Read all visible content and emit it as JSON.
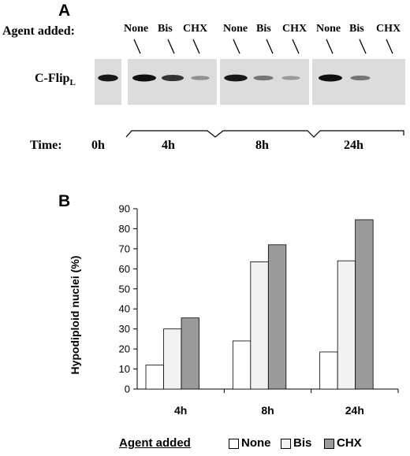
{
  "panel_a": {
    "letter": "A",
    "agent_added_label": "Agent added:",
    "lane_groups": [
      {
        "lanes": [
          "None",
          "Bis",
          "CHX"
        ]
      },
      {
        "lanes": [
          "None",
          "Bis",
          "CHX"
        ]
      },
      {
        "lanes": [
          "None",
          "Bis",
          "CHX"
        ]
      }
    ],
    "protein_label_main": "C-Flip",
    "protein_label_sub": "L",
    "time_label": "Time:",
    "times": [
      "0h",
      "4h",
      "8h",
      "24h"
    ],
    "band_intensities": [
      [
        0.95
      ],
      [
        1.0,
        0.8,
        0.3
      ],
      [
        0.95,
        0.45,
        0.25
      ],
      [
        1.0,
        0.45,
        0.0
      ]
    ]
  },
  "panel_b": {
    "letter": "B",
    "legend_title": "Agent added",
    "colors": {
      "None": "#ffffff",
      "Bis": "#f2f2f2",
      "CHX": "#9a9a9a"
    },
    "chart_data": {
      "type": "bar",
      "categories": [
        "4h",
        "8h",
        "24h"
      ],
      "series": [
        {
          "name": "None",
          "values": [
            12,
            24,
            18.5
          ]
        },
        {
          "name": "Bis",
          "values": [
            30,
            63.5,
            64
          ]
        },
        {
          "name": "CHX",
          "values": [
            35.5,
            72,
            84.5
          ]
        }
      ],
      "ylabel": "Hypodiploid nuclei (%)",
      "ylim": [
        0,
        90
      ],
      "yticks": [
        "0",
        "10",
        "20",
        "30",
        "40",
        "50",
        "60",
        "70",
        "80",
        "90"
      ],
      "grid": false,
      "legend_position": "bottom"
    }
  }
}
